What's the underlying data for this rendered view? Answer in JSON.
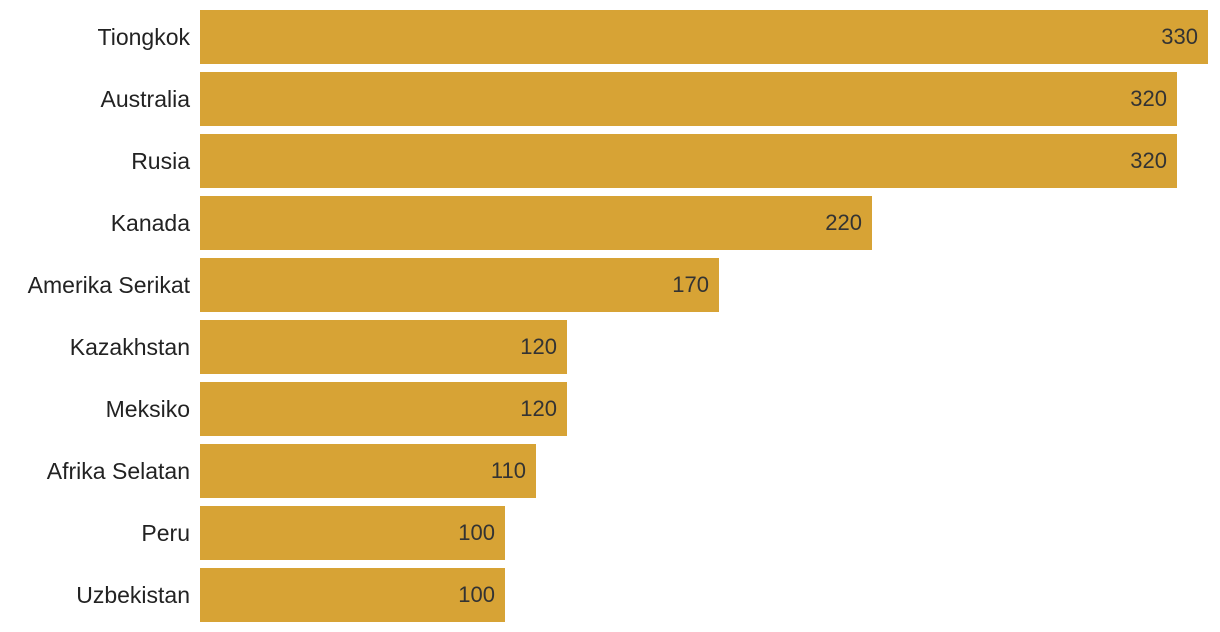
{
  "chart_data": {
    "type": "bar",
    "orientation": "horizontal",
    "categories": [
      "Tiongkok",
      "Australia",
      "Rusia",
      "Kanada",
      "Amerika Serikat",
      "Kazakhstan",
      "Meksiko",
      "Afrika Selatan",
      "Peru",
      "Uzbekistan"
    ],
    "values": [
      330,
      320,
      320,
      220,
      170,
      120,
      120,
      110,
      100,
      100
    ],
    "title": "",
    "xlabel": "",
    "ylabel": "",
    "xlim": [
      0,
      330
    ],
    "grid": false,
    "legend": "none",
    "bar_color": "#d7a335"
  }
}
